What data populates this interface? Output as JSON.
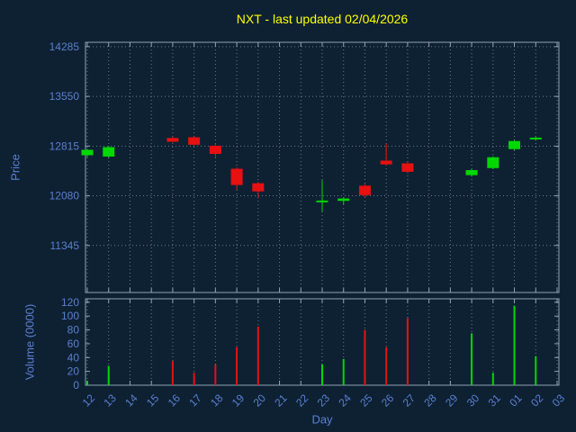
{
  "colors": {
    "background": "#0e2133",
    "title": "#ffff00",
    "axis_text": "#5a7fd0",
    "border": "#8fa3b5",
    "grid": "#697a8a",
    "up": "#00d800",
    "down": "#e81010"
  },
  "chart_data": {
    "type": "candlestick_with_volume",
    "title": "NXT - last updated 02/04/2026",
    "xlabel": "Day",
    "ylabel": "Price",
    "ylabel2": "Volume (0000)",
    "grid": "dotted",
    "x_labels": [
      "12",
      "13",
      "14",
      "15",
      "16",
      "17",
      "18",
      "19",
      "20",
      "21",
      "22",
      "23",
      "24",
      "25",
      "26",
      "27",
      "28",
      "29",
      "30",
      "31",
      "01",
      "02",
      "03"
    ],
    "price_ticks": [
      11345,
      12080,
      12815,
      13550,
      14285
    ],
    "price_range": [
      10650,
      14350
    ],
    "volume_ticks": [
      0,
      20,
      40,
      60,
      80,
      100,
      120
    ],
    "volume_range": [
      0,
      125
    ],
    "candles": [
      {
        "day": "12",
        "open": 12680,
        "high": 12775,
        "low": 12650,
        "close": 12760,
        "volume": 6
      },
      {
        "day": "13",
        "open": 12660,
        "high": 12815,
        "low": 12645,
        "close": 12800,
        "volume": 28
      },
      {
        "day": "16",
        "open": 12935,
        "high": 12955,
        "low": 12870,
        "close": 12880,
        "volume": 35
      },
      {
        "day": "17",
        "open": 12945,
        "high": 12960,
        "low": 12820,
        "close": 12835,
        "volume": 18
      },
      {
        "day": "18",
        "open": 12820,
        "high": 12845,
        "low": 12650,
        "close": 12700,
        "volume": 30
      },
      {
        "day": "19",
        "open": 12480,
        "high": 12505,
        "low": 12165,
        "close": 12240,
        "volume": 55
      },
      {
        "day": "20",
        "open": 12265,
        "high": 12285,
        "low": 12040,
        "close": 12145,
        "volume": 85
      },
      {
        "day": "23",
        "open": 11985,
        "high": 12310,
        "low": 11845,
        "close": 12010,
        "volume": 30
      },
      {
        "day": "24",
        "open": 12005,
        "high": 12060,
        "low": 11955,
        "close": 12040,
        "volume": 38
      },
      {
        "day": "25",
        "open": 12230,
        "high": 12255,
        "low": 12055,
        "close": 12090,
        "volume": 80
      },
      {
        "day": "26",
        "open": 12600,
        "high": 12850,
        "low": 12530,
        "close": 12545,
        "volume": 55
      },
      {
        "day": "27",
        "open": 12560,
        "high": 12585,
        "low": 12415,
        "close": 12435,
        "volume": 97
      },
      {
        "day": "30",
        "open": 12385,
        "high": 12475,
        "low": 12365,
        "close": 12460,
        "volume": 75
      },
      {
        "day": "31",
        "open": 12490,
        "high": 12665,
        "low": 12475,
        "close": 12650,
        "volume": 18
      },
      {
        "day": "01",
        "open": 12770,
        "high": 12905,
        "low": 12755,
        "close": 12890,
        "volume": 115
      },
      {
        "day": "02",
        "open": 12915,
        "high": 12955,
        "low": 12895,
        "close": 12940,
        "volume": 42
      }
    ]
  }
}
